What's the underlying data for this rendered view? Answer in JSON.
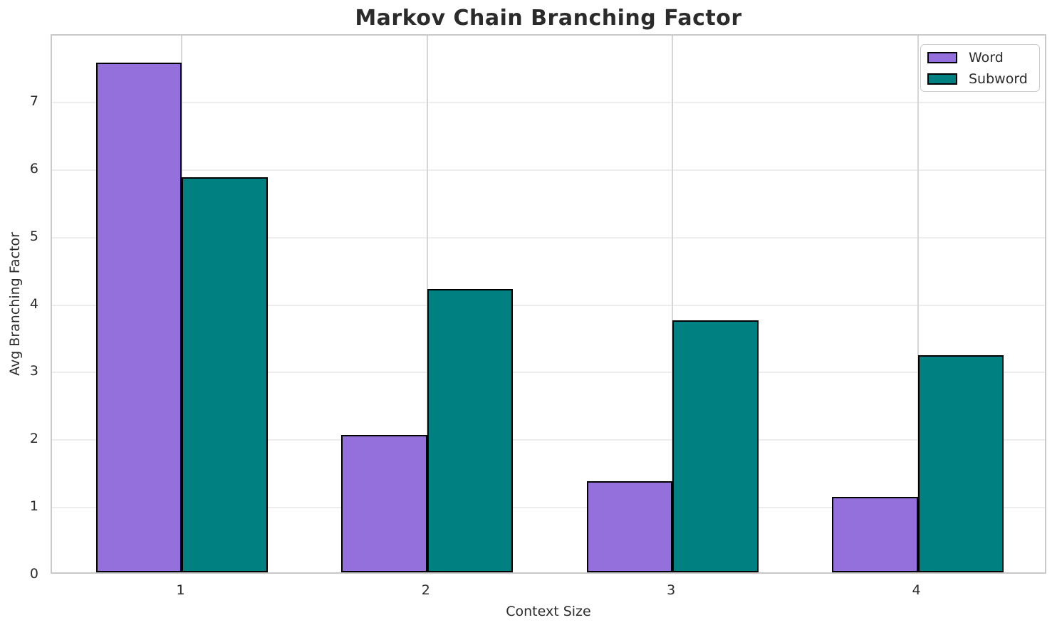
{
  "chart_data": {
    "type": "bar",
    "title": "Markov Chain Branching Factor",
    "xlabel": "Context Size",
    "ylabel": "Avg Branching Factor",
    "categories": [
      "1",
      "2",
      "3",
      "4"
    ],
    "x": [
      1,
      2,
      3,
      4
    ],
    "series": [
      {
        "name": "Word",
        "color": "#9370DB",
        "values": [
          7.55,
          2.03,
          1.35,
          1.12
        ]
      },
      {
        "name": "Subword",
        "color": "#008080",
        "values": [
          5.85,
          4.2,
          3.73,
          3.22
        ]
      }
    ],
    "bar_edge_color": "#000000",
    "bar_width": 0.35,
    "xlim": [
      0.47,
      4.53
    ],
    "ylim": [
      0,
      7.99
    ],
    "yticks": [
      0,
      1,
      2,
      3,
      4,
      5,
      6,
      7
    ],
    "grid": true,
    "legend_position": "upper right"
  }
}
